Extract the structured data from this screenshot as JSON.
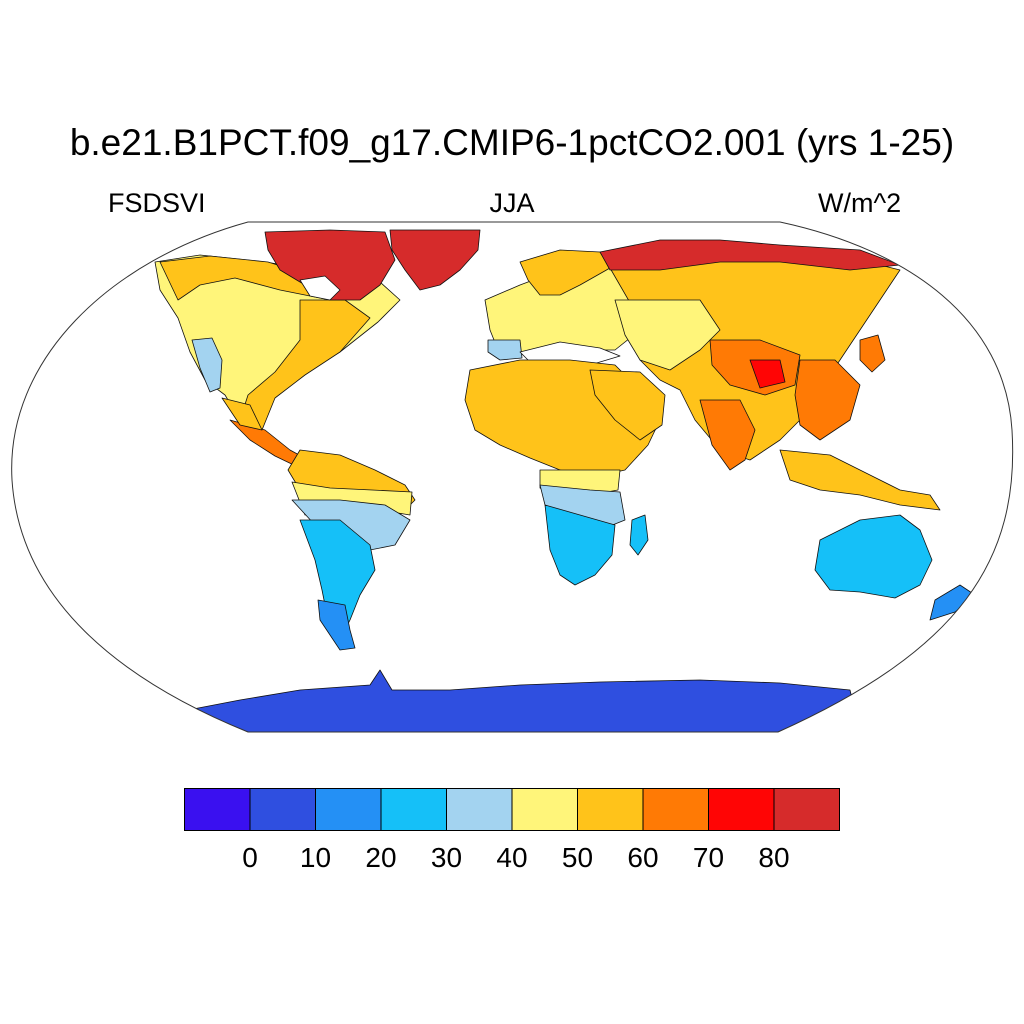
{
  "header": {
    "title": "b.e21.B1PCT.f09_g17.CMIP6-1pctCO2.001 (yrs 1-25)",
    "variable": "FSDSVI",
    "season": "JJA",
    "units": "W/m^2"
  },
  "chart_data": {
    "type": "heatmap",
    "projection": "Robinson",
    "title": "b.e21.B1PCT.f09_g17.CMIP6-1pctCO2.001 (yrs 1-25)",
    "variable": "FSDSVI",
    "season": "JJA",
    "units": "W/m^2",
    "colorbar": {
      "levels": [
        0,
        10,
        20,
        30,
        40,
        50,
        60,
        70,
        80
      ],
      "tick_labels": [
        "0",
        "10",
        "20",
        "30",
        "40",
        "50",
        "60",
        "70",
        "80"
      ],
      "colors": [
        "#3a10f0",
        "#2f4fe0",
        "#2490f5",
        "#15c0f8",
        "#a3d3f0",
        "#fff57a",
        "#ffc31a",
        "#ff7a05",
        "#ff0505",
        "#d62b2b"
      ]
    },
    "regions": [
      {
        "name": "Arctic Canada / Greenland",
        "range": "70-80+"
      },
      {
        "name": "North America",
        "range": "50-60"
      },
      {
        "name": "Western US coast",
        "range": "30-40"
      },
      {
        "name": "Eastern US / Central America",
        "range": "60-70"
      },
      {
        "name": "Northern South America",
        "range": "40-60"
      },
      {
        "name": "Southern South America",
        "range": "20-40"
      },
      {
        "name": "Patagonia",
        "range": "10-20"
      },
      {
        "name": "Europe",
        "range": "40-60"
      },
      {
        "name": "Northern Siberia",
        "range": "70-80+"
      },
      {
        "name": "Asia",
        "range": "50-70"
      },
      {
        "name": "Tibetan Plateau",
        "range": "70-80"
      },
      {
        "name": "India / Southeast Asia",
        "range": "60-70"
      },
      {
        "name": "Sahara / Arabia",
        "range": "50-60"
      },
      {
        "name": "Southern Africa",
        "range": "20-40"
      },
      {
        "name": "Australia",
        "range": "20-30"
      },
      {
        "name": "New Zealand",
        "range": "10-20"
      },
      {
        "name": "Antarctica",
        "range": "0-10"
      }
    ]
  }
}
